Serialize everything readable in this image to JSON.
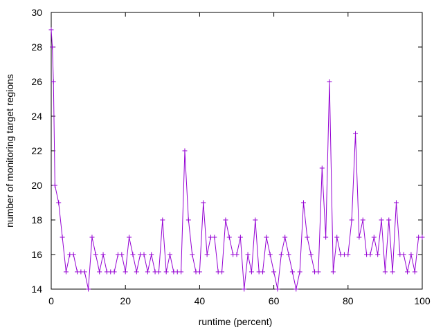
{
  "chart_data": {
    "type": "line",
    "xlabel": "runtime (percent)",
    "ylabel": "number of monitoring target regions",
    "xlim": [
      0,
      100
    ],
    "ylim": [
      14,
      30
    ],
    "x_ticks": [
      0,
      20,
      40,
      60,
      80,
      100
    ],
    "y_ticks": [
      14,
      16,
      18,
      20,
      22,
      24,
      26,
      28,
      30
    ],
    "grid": false,
    "legend": "none",
    "series": [
      {
        "color": "#9400d3",
        "marker": "plus",
        "points": [
          [
            0,
            29
          ],
          [
            0.3,
            28
          ],
          [
            0.6,
            26
          ],
          [
            1,
            20
          ],
          [
            2,
            19
          ],
          [
            3,
            17
          ],
          [
            4,
            15
          ],
          [
            5,
            16
          ],
          [
            6,
            16
          ],
          [
            7,
            15
          ],
          [
            8,
            15
          ],
          [
            9,
            15
          ],
          [
            10,
            14
          ],
          [
            11,
            17
          ],
          [
            12,
            16
          ],
          [
            13,
            15
          ],
          [
            14,
            16
          ],
          [
            15,
            15
          ],
          [
            16,
            15
          ],
          [
            17,
            15
          ],
          [
            18,
            16
          ],
          [
            19,
            16
          ],
          [
            20,
            15
          ],
          [
            21,
            17
          ],
          [
            22,
            16
          ],
          [
            23,
            15
          ],
          [
            24,
            16
          ],
          [
            25,
            16
          ],
          [
            26,
            15
          ],
          [
            27,
            16
          ],
          [
            28,
            15
          ],
          [
            29,
            15
          ],
          [
            30,
            18
          ],
          [
            31,
            15
          ],
          [
            32,
            16
          ],
          [
            33,
            15
          ],
          [
            34,
            15
          ],
          [
            35,
            15
          ],
          [
            36,
            22
          ],
          [
            37,
            18
          ],
          [
            38,
            16
          ],
          [
            39,
            15
          ],
          [
            40,
            15
          ],
          [
            41,
            19
          ],
          [
            42,
            16
          ],
          [
            43,
            17
          ],
          [
            44,
            17
          ],
          [
            45,
            15
          ],
          [
            46,
            15
          ],
          [
            47,
            18
          ],
          [
            48,
            17
          ],
          [
            49,
            16
          ],
          [
            50,
            16
          ],
          [
            51,
            17
          ],
          [
            52,
            14
          ],
          [
            53,
            16
          ],
          [
            54,
            15
          ],
          [
            55,
            18
          ],
          [
            56,
            15
          ],
          [
            57,
            15
          ],
          [
            58,
            17
          ],
          [
            59,
            16
          ],
          [
            60,
            15
          ],
          [
            61,
            14
          ],
          [
            62,
            16
          ],
          [
            63,
            17
          ],
          [
            64,
            16
          ],
          [
            65,
            15
          ],
          [
            66,
            14
          ],
          [
            67,
            15
          ],
          [
            68,
            19
          ],
          [
            69,
            17
          ],
          [
            70,
            16
          ],
          [
            71,
            15
          ],
          [
            72,
            15
          ],
          [
            73,
            21
          ],
          [
            74,
            17
          ],
          [
            75,
            26
          ],
          [
            76,
            15
          ],
          [
            77,
            17
          ],
          [
            78,
            16
          ],
          [
            79,
            16
          ],
          [
            80,
            16
          ],
          [
            81,
            18
          ],
          [
            82,
            23
          ],
          [
            83,
            17
          ],
          [
            84,
            18
          ],
          [
            85,
            16
          ],
          [
            86,
            16
          ],
          [
            87,
            17
          ],
          [
            88,
            16
          ],
          [
            89,
            18
          ],
          [
            90,
            15
          ],
          [
            91,
            18
          ],
          [
            92,
            15
          ],
          [
            93,
            19
          ],
          [
            94,
            16
          ],
          [
            95,
            16
          ],
          [
            96,
            15
          ],
          [
            97,
            16
          ],
          [
            98,
            15
          ],
          [
            99,
            17
          ],
          [
            100,
            17
          ]
        ]
      }
    ]
  }
}
